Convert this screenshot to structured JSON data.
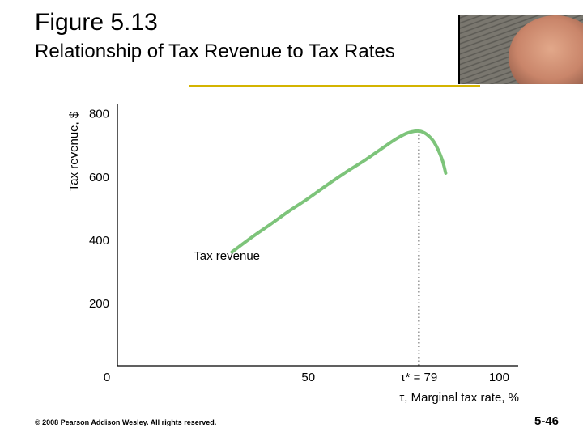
{
  "slide": {
    "figure_number": "Figure 5.13",
    "title": "Relationship of Tax Revenue to Tax Rates",
    "copyright": "© 2008 Pearson Addison Wesley. All rights reserved.",
    "page_number": "5-46"
  },
  "colors": {
    "curve": "#7dc47a",
    "accent_rule": "#d4b400",
    "axes": "#000000"
  },
  "chart_data": {
    "type": "line",
    "title": "",
    "xlabel": "τ, Marginal tax rate, %",
    "ylabel": "Tax revenue, $",
    "xlim": [
      0,
      105
    ],
    "ylim": [
      0,
      830
    ],
    "x_ticks": [
      {
        "value": 50,
        "label": "50"
      },
      {
        "value": 79,
        "label": "τ* = 79"
      },
      {
        "value": 100,
        "label": "100"
      }
    ],
    "y_ticks": [
      {
        "value": 200,
        "label": "200"
      },
      {
        "value": 400,
        "label": "400"
      },
      {
        "value": 600,
        "label": "600"
      },
      {
        "value": 800,
        "label": "800"
      }
    ],
    "origin_label": "0",
    "series": [
      {
        "name": "Tax revenue",
        "x": [
          30,
          35,
          40,
          45,
          50,
          55,
          60,
          65,
          70,
          73,
          76,
          79,
          81,
          83,
          85,
          86
        ],
        "y": [
          360,
          405,
          447,
          490,
          530,
          573,
          614,
          652,
          694,
          718,
          737,
          743,
          733,
          707,
          655,
          610
        ]
      }
    ],
    "reference_lines": [
      {
        "x": 79,
        "y_from": 0,
        "y_to": 743,
        "style": "dotted"
      }
    ],
    "annotations": [
      {
        "text": "Tax revenue",
        "x": 20,
        "y": 335
      }
    ],
    "grid": false
  }
}
